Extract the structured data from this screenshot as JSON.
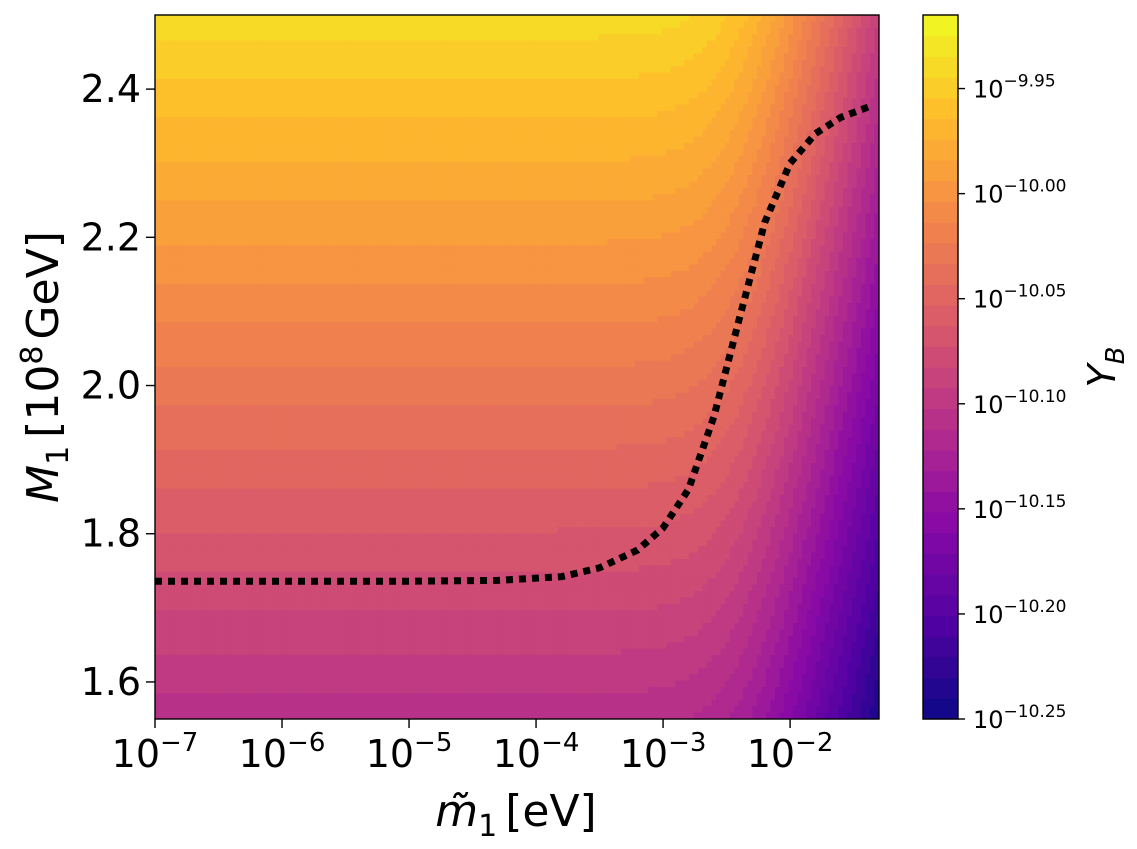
{
  "chart_data": {
    "type": "heatmap",
    "subtype": "filled-contour",
    "colormap": "plasma",
    "x_scale": "log",
    "xlim_exponent": [
      -7,
      -1.3
    ],
    "ylim": [
      1.55,
      2.5
    ],
    "xlabel_main": "m̃",
    "xlabel_sub": "1",
    "xlabel_unit": "[eV]",
    "ylabel_main": "M",
    "ylabel_sub": "1",
    "ylabel_bracket_open": "[10",
    "ylabel_sup": "8",
    "ylabel_unit": "GeV]",
    "x_ticks": [
      {
        "exp": -7,
        "base": "10",
        "sup": "−7"
      },
      {
        "exp": -6,
        "base": "10",
        "sup": "−6"
      },
      {
        "exp": -5,
        "base": "10",
        "sup": "−5"
      },
      {
        "exp": -4,
        "base": "10",
        "sup": "−4"
      },
      {
        "exp": -3,
        "base": "10",
        "sup": "−3"
      },
      {
        "exp": -2,
        "base": "10",
        "sup": "−2"
      }
    ],
    "y_ticks": [
      {
        "value": 1.6,
        "label": "1.6"
      },
      {
        "value": 1.8,
        "label": "1.8"
      },
      {
        "value": 2.0,
        "label": "2.0"
      },
      {
        "value": 2.2,
        "label": "2.2"
      },
      {
        "value": 2.4,
        "label": "2.4"
      }
    ],
    "colorbar": {
      "label_main": "Y",
      "label_sub": "B",
      "range_exponent": [
        -10.25,
        -9.915
      ],
      "levels": 34,
      "ticks": [
        {
          "exp": -10.25,
          "base": "10",
          "sup": "−10.25"
        },
        {
          "exp": -10.2,
          "base": "10",
          "sup": "−10.20"
        },
        {
          "exp": -10.15,
          "base": "10",
          "sup": "−10.15"
        },
        {
          "exp": -10.1,
          "base": "10",
          "sup": "−10.10"
        },
        {
          "exp": -10.05,
          "base": "10",
          "sup": "−10.05"
        },
        {
          "exp": -10.0,
          "base": "10",
          "sup": "−10.00"
        },
        {
          "exp": -9.95,
          "base": "10",
          "sup": "−9.95"
        }
      ]
    },
    "observed_contour": {
      "style": "dotted",
      "color": "#000000",
      "points": [
        {
          "log10_x": -7.0,
          "y": 1.736
        },
        {
          "log10_x": -6.0,
          "y": 1.736
        },
        {
          "log10_x": -5.0,
          "y": 1.736
        },
        {
          "log10_x": -4.3,
          "y": 1.737
        },
        {
          "log10_x": -3.8,
          "y": 1.742
        },
        {
          "log10_x": -3.5,
          "y": 1.754
        },
        {
          "log10_x": -3.2,
          "y": 1.778
        },
        {
          "log10_x": -3.0,
          "y": 1.808
        },
        {
          "log10_x": -2.8,
          "y": 1.86
        },
        {
          "log10_x": -2.6,
          "y": 1.958
        },
        {
          "log10_x": -2.4,
          "y": 2.09
        },
        {
          "log10_x": -2.2,
          "y": 2.22
        },
        {
          "log10_x": -2.0,
          "y": 2.3
        },
        {
          "log10_x": -1.8,
          "y": 2.34
        },
        {
          "log10_x": -1.6,
          "y": 2.362
        },
        {
          "log10_x": -1.35,
          "y": 2.378
        }
      ]
    }
  }
}
